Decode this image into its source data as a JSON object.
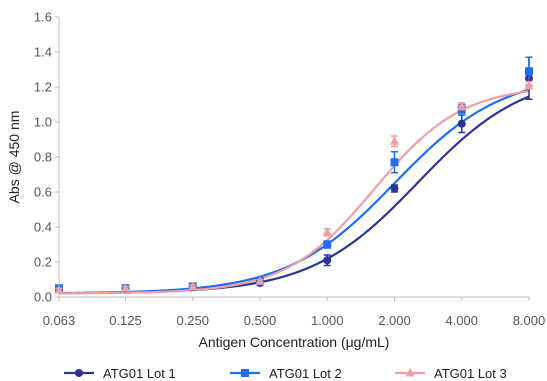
{
  "chart_data": {
    "type": "line",
    "xlabel": "Antigen Concentration (μg/mL)",
    "ylabel": "Abs @ 450 nm",
    "x_scale": "log2",
    "x_ticks": [
      "0.063",
      "0.125",
      "0.250",
      "0.500",
      "1.000",
      "2.000",
      "4.000",
      "8.000"
    ],
    "x_values": [
      0.063,
      0.125,
      0.25,
      0.5,
      1,
      2,
      4,
      8
    ],
    "ylim": [
      0,
      1.6
    ],
    "y_ticks": [
      "0.0",
      "0.2",
      "0.4",
      "0.6",
      "0.8",
      "1.0",
      "1.2",
      "1.4",
      "1.6"
    ],
    "y_tick_values": [
      0,
      0.2,
      0.4,
      0.6,
      0.8,
      1.0,
      1.2,
      1.4,
      1.6
    ],
    "grid": false,
    "legend_position": "bottom",
    "series": [
      {
        "name": "ATG01  Lot 1",
        "color": "#2a3595",
        "marker": "circle",
        "x": [
          0.063,
          0.125,
          0.25,
          0.5,
          1,
          2,
          4,
          8
        ],
        "y": [
          0.05,
          0.05,
          0.06,
          0.08,
          0.21,
          0.62,
          0.99,
          1.25
        ],
        "err": [
          0.01,
          0.01,
          0.01,
          0.01,
          0.03,
          0.02,
          0.05,
          0.12
        ],
        "curve": {
          "bottom": 0.02,
          "top": 1.29,
          "ec50": 2.55,
          "hill": 1.8
        }
      },
      {
        "name": "ATG01 Lot 2",
        "color": "#1e6ef0",
        "marker": "square",
        "x": [
          0.063,
          0.125,
          0.25,
          0.5,
          1,
          2,
          4,
          8
        ],
        "y": [
          0.05,
          0.05,
          0.06,
          0.09,
          0.3,
          0.77,
          1.07,
          1.29
        ],
        "err": [
          0.01,
          0.01,
          0.01,
          0.01,
          0.02,
          0.06,
          0.03,
          0.08
        ],
        "curve": {
          "bottom": 0.02,
          "top": 1.28,
          "ec50": 2.0,
          "hill": 1.8
        }
      },
      {
        "name": "ATG01 Lot 3",
        "color": "#f0a0a0",
        "marker": "triangle",
        "x": [
          0.063,
          0.125,
          0.25,
          0.5,
          1,
          2,
          4,
          8
        ],
        "y": [
          0.04,
          0.05,
          0.06,
          0.09,
          0.37,
          0.89,
          1.09,
          1.21
        ],
        "err": [
          0.01,
          0.01,
          0.01,
          0.01,
          0.02,
          0.03,
          0.02,
          0.02
        ],
        "curve": {
          "bottom": 0.02,
          "top": 1.21,
          "ec50": 1.62,
          "hill": 2.2
        }
      }
    ]
  }
}
